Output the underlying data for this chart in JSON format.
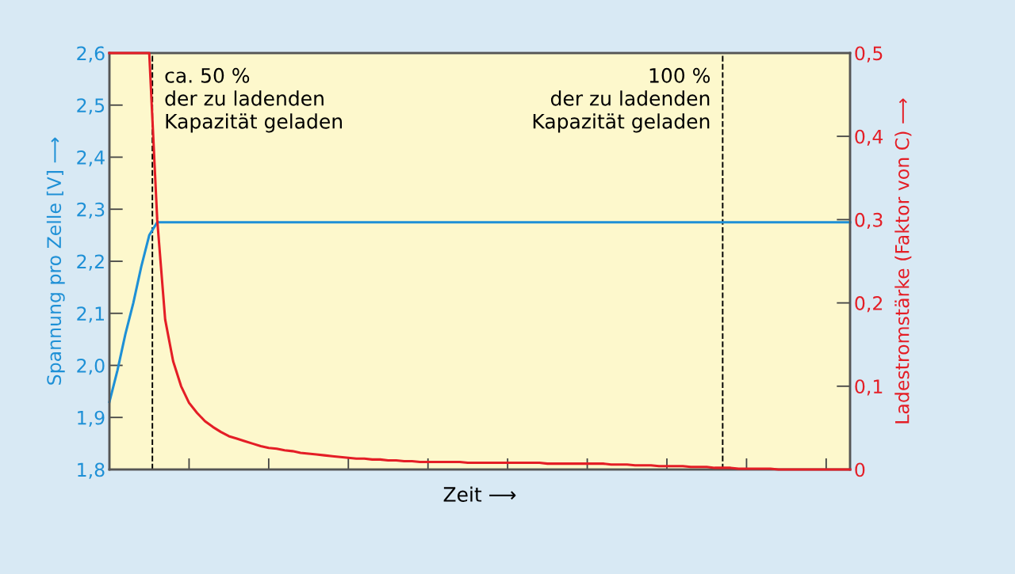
{
  "chart_data": {
    "type": "line",
    "xlabel": "Zeit ⟶",
    "ylabel": "Spannung pro Zelle [V] ⟶",
    "y2label": "Ladestromstärke (Faktor von C) ⟶",
    "categories": [
      null,
      null,
      null,
      null,
      null,
      null,
      null,
      null,
      null,
      null,
      null,
      null,
      null,
      null,
      null,
      null,
      null,
      null,
      null,
      null,
      null,
      null,
      null,
      null,
      null,
      null,
      null,
      null,
      null,
      null,
      null,
      null,
      null,
      null,
      null,
      null,
      null,
      null,
      null,
      null,
      null,
      null,
      null,
      null,
      null,
      null,
      null,
      null,
      null,
      null,
      null,
      null,
      null,
      null,
      null,
      null,
      null,
      null,
      null,
      null,
      null,
      null,
      null,
      null,
      null,
      null,
      null,
      null,
      null,
      null,
      null,
      null,
      null,
      null,
      null,
      null,
      null,
      null,
      null,
      null,
      null,
      null,
      null,
      null,
      null,
      null,
      null,
      null,
      null,
      null,
      null,
      null,
      null,
      null
    ],
    "series": [
      {
        "color": "#1e90d6",
        "values": [
          1.93,
          1.99,
          2.06,
          2.12,
          2.19,
          2.25,
          2.275,
          2.275,
          2.275,
          2.275,
          2.275,
          2.275,
          2.275,
          2.275,
          2.275,
          2.275,
          2.275,
          2.275,
          2.275,
          2.275,
          2.275,
          2.275,
          2.275,
          2.275,
          2.275,
          2.275,
          2.275,
          2.275,
          2.275,
          2.275,
          2.275,
          2.275,
          2.275,
          2.275,
          2.275,
          2.275,
          2.275,
          2.275,
          2.275,
          2.275,
          2.275,
          2.275,
          2.275,
          2.275,
          2.275,
          2.275,
          2.275,
          2.275,
          2.275,
          2.275,
          2.275,
          2.275,
          2.275,
          2.275,
          2.275,
          2.275,
          2.275,
          2.275,
          2.275,
          2.275,
          2.275,
          2.275,
          2.275,
          2.275,
          2.275,
          2.275,
          2.275,
          2.275,
          2.275,
          2.275,
          2.275,
          2.275,
          2.275,
          2.275,
          2.275,
          2.275,
          2.275,
          2.275,
          2.275,
          2.275,
          2.275,
          2.275,
          2.275,
          2.275,
          2.275,
          2.275,
          2.275,
          2.275,
          2.275,
          2.275,
          2.275,
          2.275,
          2.275,
          2.275
        ]
      },
      {
        "color": "#e41e26",
        "axis": "y2",
        "values": [
          0.5,
          0.5,
          0.5,
          0.5,
          0.5,
          0.5,
          0.3,
          0.18,
          0.13,
          0.1,
          0.08,
          0.068,
          0.058,
          0.051,
          0.045,
          0.04,
          0.037,
          0.034,
          0.031,
          0.028,
          0.026,
          0.025,
          0.023,
          0.022,
          0.02,
          0.019,
          0.018,
          0.017,
          0.016,
          0.015,
          0.014,
          0.013,
          0.013,
          0.012,
          0.012,
          0.011,
          0.011,
          0.01,
          0.01,
          0.009,
          0.009,
          0.009,
          0.009,
          0.009,
          0.009,
          0.008,
          0.008,
          0.008,
          0.008,
          0.008,
          0.008,
          0.008,
          0.008,
          0.008,
          0.008,
          0.007,
          0.007,
          0.007,
          0.007,
          0.007,
          0.007,
          0.007,
          0.007,
          0.006,
          0.006,
          0.006,
          0.005,
          0.005,
          0.005,
          0.004,
          0.004,
          0.004,
          0.004,
          0.003,
          0.003,
          0.003,
          0.002,
          0.002,
          0.002,
          0.001,
          0.001,
          0.001,
          0.001,
          0.001,
          0,
          0,
          0,
          0,
          0,
          0,
          0,
          0,
          0,
          0
        ]
      }
    ],
    "ylim": [
      1.8,
      2.6
    ],
    "yticks": [
      {
        "value": 1.8,
        "label": "1,8"
      },
      {
        "value": 1.9,
        "label": "1,9"
      },
      {
        "value": 2.0,
        "label": "2,0"
      },
      {
        "value": 2.1,
        "label": "2,1"
      },
      {
        "value": 2.2,
        "label": "2,2"
      },
      {
        "value": 2.3,
        "label": "2,3"
      },
      {
        "value": 2.4,
        "label": "2,4"
      },
      {
        "value": 2.5,
        "label": "2,5"
      },
      {
        "value": 2.6,
        "label": "2,6"
      }
    ],
    "y2lim": [
      0,
      0.5
    ],
    "y2ticks": [
      0,
      {
        "value": 0.1,
        "label": "0,1"
      },
      {
        "value": 0.2,
        "label": "0,2"
      },
      {
        "value": 0.3,
        "label": "0,3"
      },
      {
        "value": 0.4,
        "label": "0,4"
      },
      {
        "value": 0.5,
        "label": "0,5"
      }
    ],
    "annotations": [
      "ca. 50 %\nder zu ladenden\nKapazität geladen",
      "100 %\nder zu ladenden\nKapazität geladen"
    ],
    "grid": false,
    "legend": false
  }
}
